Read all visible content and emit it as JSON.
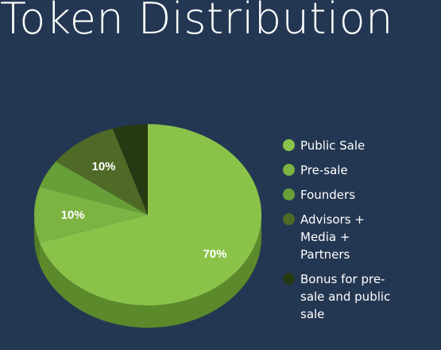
{
  "title": "Token Distribution",
  "chart_data": {
    "type": "pie",
    "style": "3d",
    "slices": [
      {
        "name": "Public Sale",
        "value": 70,
        "label": "70%",
        "color": "#8bc34a",
        "side_color": "#5c8a2a"
      },
      {
        "name": "Pre-sale",
        "value": 10,
        "label": "10%",
        "color": "#7cb342",
        "side_color": "#527d26"
      },
      {
        "name": "Founders",
        "value": 5,
        "label": "",
        "color": "#689f38",
        "side_color": "#466b22"
      },
      {
        "name": "Advisors + Media + Partners",
        "value": 10,
        "label": "10%",
        "color": "#4f6a26",
        "side_color": "#34471a"
      },
      {
        "name": "Bonus for pre-sale and public sale",
        "value": 5,
        "label": "",
        "color": "#253a12",
        "side_color": "#18270b"
      }
    ],
    "legend_position": "right"
  }
}
